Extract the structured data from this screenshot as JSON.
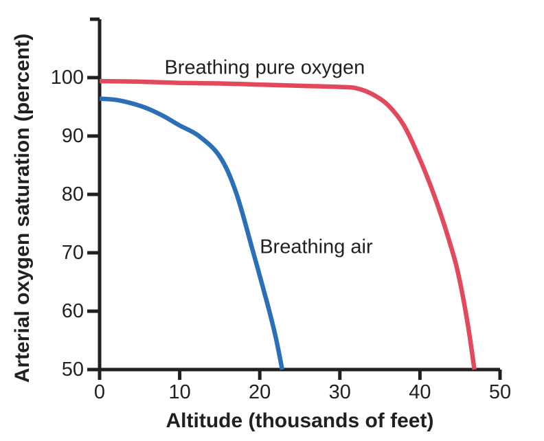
{
  "colors": {
    "background": "#ffffff",
    "axis": "#231f20",
    "text": "#231f20"
  },
  "chart_data": {
    "type": "line",
    "title": "",
    "xlabel": "Altitude (thousands of feet)",
    "ylabel": "Arterial oxygen saturation (percent)",
    "xlim": [
      0,
      50
    ],
    "ylim": [
      50,
      110
    ],
    "x_ticks": [
      0,
      10,
      20,
      30,
      40,
      50
    ],
    "y_ticks": [
      50,
      60,
      70,
      80,
      90,
      100
    ],
    "grid": false,
    "legend": "inline curve annotations",
    "series": [
      {
        "name": "Breathing pure oxygen",
        "color": "#e2495c",
        "points": [
          [
            0,
            99.4
          ],
          [
            5,
            99.3
          ],
          [
            10,
            99.1
          ],
          [
            15,
            99.0
          ],
          [
            20,
            98.8
          ],
          [
            25,
            98.6
          ],
          [
            30,
            98.4
          ],
          [
            32,
            98.2
          ],
          [
            34,
            97.2
          ],
          [
            36,
            95.3
          ],
          [
            38,
            91.8
          ],
          [
            40,
            86.0
          ],
          [
            42,
            79.0
          ],
          [
            44,
            70.5
          ],
          [
            45,
            65.0
          ],
          [
            46,
            57.5
          ],
          [
            46.8,
            50.0
          ]
        ]
      },
      {
        "name": "Breathing air",
        "color": "#2b6fb7",
        "points": [
          [
            0,
            96.4
          ],
          [
            2,
            96.2
          ],
          [
            4,
            95.6
          ],
          [
            6,
            94.7
          ],
          [
            8,
            93.4
          ],
          [
            10,
            91.8
          ],
          [
            12.4,
            90.0
          ],
          [
            15,
            86.5
          ],
          [
            17,
            80.5
          ],
          [
            19,
            71.0
          ],
          [
            21,
            61.0
          ],
          [
            22,
            55.5
          ],
          [
            22.8,
            50.0
          ]
        ]
      }
    ],
    "annotations": [
      {
        "text": "Breathing pure oxygen",
        "x": 8.1,
        "y": 101.7,
        "anchor": "left-center"
      },
      {
        "text": "Breathing air",
        "x": 20.0,
        "y": 71.0,
        "anchor": "left-center"
      }
    ]
  }
}
